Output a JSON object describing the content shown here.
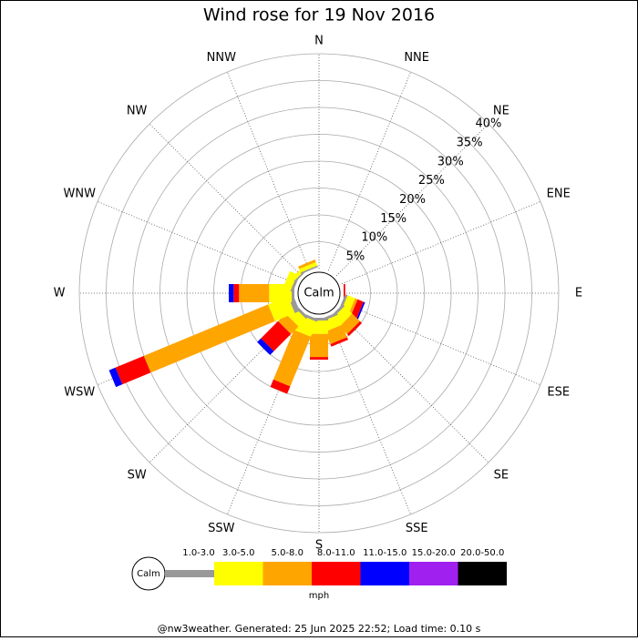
{
  "chart_data": {
    "type": "windrose",
    "title": "Wind rose for 19 Nov 2016",
    "calm_label": "Calm",
    "unit": "mph",
    "footer": "@nw3weather. Generated: 25 Jun 2025 22:52; Load time: 0.10 s",
    "categories": [
      "N",
      "NNE",
      "NE",
      "ENE",
      "E",
      "ESE",
      "SE",
      "SSE",
      "S",
      "SSW",
      "SW",
      "WSW",
      "W",
      "WNW",
      "NW",
      "NNW"
    ],
    "rlim": [
      0,
      40
    ],
    "rticks": [
      {
        "value": 5,
        "label": "5%"
      },
      {
        "value": 10,
        "label": "10%"
      },
      {
        "value": 15,
        "label": "15%"
      },
      {
        "value": 20,
        "label": "20%"
      },
      {
        "value": 25,
        "label": "25%"
      },
      {
        "value": 30,
        "label": "30%"
      },
      {
        "value": 35,
        "label": "35%"
      },
      {
        "value": 40,
        "label": "40%"
      }
    ],
    "series": [
      {
        "name": "1.0-3.0",
        "color": "#999999",
        "values": [
          0,
          0,
          0,
          0,
          0,
          0.5,
          0.5,
          0.5,
          0.5,
          0.5,
          0.5,
          1,
          0.5,
          0.5,
          0.3,
          0.3
        ]
      },
      {
        "name": "3.0-5.0",
        "color": "#ffff00",
        "values": [
          0,
          0,
          0,
          0,
          0,
          1.5,
          2,
          2,
          2.5,
          3,
          2,
          4,
          4.2,
          1.5,
          0.7,
          0.7
        ]
      },
      {
        "name": "5.0-8.0",
        "color": "#ffa500",
        "values": [
          0,
          0,
          0,
          0,
          0,
          0.5,
          2,
          2.5,
          4.3,
          10,
          2,
          25,
          5.6,
          0,
          0,
          0.5
        ]
      },
      {
        "name": "8.0-11.0",
        "color": "#ff0000",
        "values": [
          0,
          0,
          0,
          0,
          0.3,
          1.2,
          0.5,
          0.5,
          0.5,
          1.5,
          4.5,
          5.7,
          1,
          0,
          0,
          0
        ]
      },
      {
        "name": "11.0-15.0",
        "color": "#0000ff",
        "values": [
          0,
          0,
          0,
          0,
          0,
          0.3,
          0,
          0,
          0,
          0,
          1,
          1.3,
          0.9,
          0,
          0,
          0
        ]
      },
      {
        "name": "15.0-20.0",
        "color": "#a020f0",
        "values": [
          0,
          0,
          0,
          0,
          0,
          0,
          0,
          0,
          0,
          0,
          0,
          0,
          0,
          0,
          0,
          0
        ]
      },
      {
        "name": "20.0-50.0",
        "color": "#000000",
        "values": [
          0,
          0,
          0,
          0,
          0,
          0,
          0,
          0,
          0,
          0,
          0,
          0,
          0,
          0,
          0,
          0
        ]
      }
    ]
  }
}
